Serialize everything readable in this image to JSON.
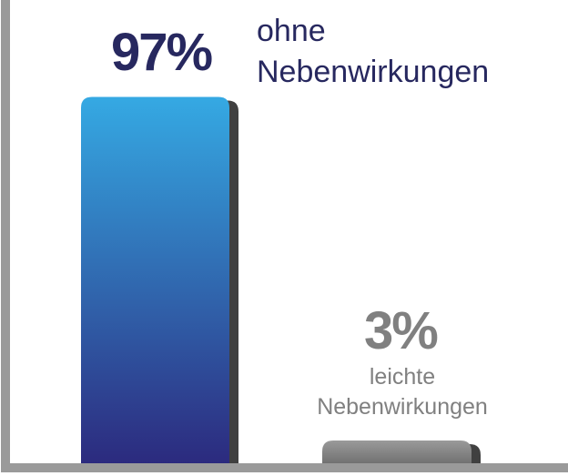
{
  "colors": {
    "axis": "#9a9a9a",
    "bar_top": "#35a9e3",
    "bar_bottom": "#2c2a7e",
    "bar_gray_top": "#9a9a9a",
    "bar_gray_bottom": "#707070",
    "shadow": "#404040",
    "primary_text": "#27285f",
    "secondary_text": "#808080"
  },
  "chart_data": {
    "type": "bar",
    "categories": [
      "ohne Nebenwirkungen",
      "leichte Nebenwirkungen"
    ],
    "values": [
      97,
      3
    ],
    "value_labels": [
      "97%",
      "3%"
    ],
    "category_lines": [
      [
        "ohne",
        "Nebenwirkungen"
      ],
      [
        "leichte",
        "Nebenwirkungen"
      ]
    ],
    "unit": "%",
    "ylim": [
      0,
      100
    ],
    "grid": false,
    "legend": "none"
  }
}
